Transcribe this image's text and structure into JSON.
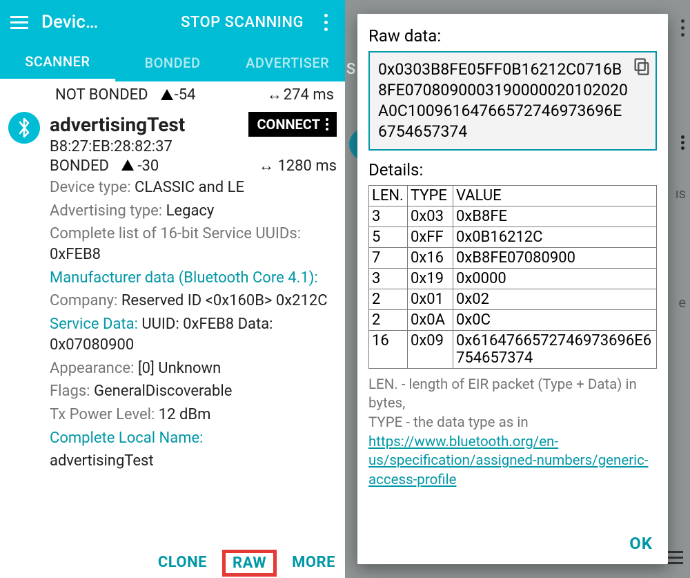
{
  "colors": {
    "primary": "#00bcd4",
    "primary_dark": "#0097a7",
    "muted": "#757575",
    "text": "#212121",
    "highlight_border": "#e53935",
    "scrim": "#8f9494",
    "raw_border": "#0097a7",
    "table_border": "#777777"
  },
  "appbar": {
    "title": "Devic…",
    "action": "STOP SCANNING"
  },
  "tabs": {
    "items": [
      "SCANNER",
      "BONDED",
      "ADVERTISER"
    ],
    "active_index": 0
  },
  "partial_row": {
    "bond_status": "NOT BONDED",
    "rssi": "-54",
    "interval": "274 ms"
  },
  "device": {
    "name": "advertisingTest",
    "connect_label": "CONNECT",
    "mac": "B8:27:EB:28:82:37",
    "bond_status": "BONDED",
    "rssi": "-30",
    "interval": "1280 ms",
    "type_label": "Device type:",
    "type_value": "CLASSIC and LE",
    "adv_label": "Advertising type:",
    "adv_value": "Legacy",
    "uuids_label": "Complete list of 16-bit Service UUIDs:",
    "uuids_value": "0xFEB8",
    "manuf_header": "Manufacturer data (Bluetooth Core 4.1):",
    "company_label": "Company:",
    "company_value": "Reserved ID <0x160B> 0x212C",
    "svc_label": "Service Data:",
    "svc_value": "UUID: 0xFEB8 Data: 0x07080900",
    "appearance_label": "Appearance:",
    "appearance_value": "[0] Unknown",
    "flags_label": "Flags:",
    "flags_value": "GeneralDiscoverable",
    "tx_label": "Tx Power Level:",
    "tx_value": "12 dBm",
    "localname_label": "Complete Local Name:",
    "localname_value": "advertisingTest"
  },
  "actions": {
    "clone": "CLONE",
    "raw": "RAW",
    "more": "MORE"
  },
  "right_peek": {
    "tab_fragment": "S",
    "row_fragment_1": "ıs",
    "row_fragment_2": "e"
  },
  "dialog": {
    "raw_label": "Raw data:",
    "raw_hex": "0x0303B8FE05FF0B16212C0716B8FE0708090003190000020102020A0C10096164766572746973696E6754657374",
    "details_label": "Details:",
    "columns": [
      "LEN.",
      "TYPE",
      "VALUE"
    ],
    "rows": [
      [
        "3",
        "0x03",
        "0xB8FE"
      ],
      [
        "5",
        "0xFF",
        "0x0B16212C"
      ],
      [
        "7",
        "0x16",
        "0xB8FE07080900"
      ],
      [
        "3",
        "0x19",
        "0x0000"
      ],
      [
        "2",
        "0x01",
        "0x02"
      ],
      [
        "2",
        "0x0A",
        "0x0C"
      ],
      [
        "16",
        "0x09",
        "0x6164766572746973696E6754657374"
      ]
    ],
    "note_prefix": "LEN. - length of EIR packet (Type + Data) in bytes,",
    "note_type_prefix": "TYPE - the data type as in ",
    "note_link": "https://www.bluetooth.org/en-us/specification/assigned-numbers/generic-access-profile",
    "ok": "OK"
  }
}
